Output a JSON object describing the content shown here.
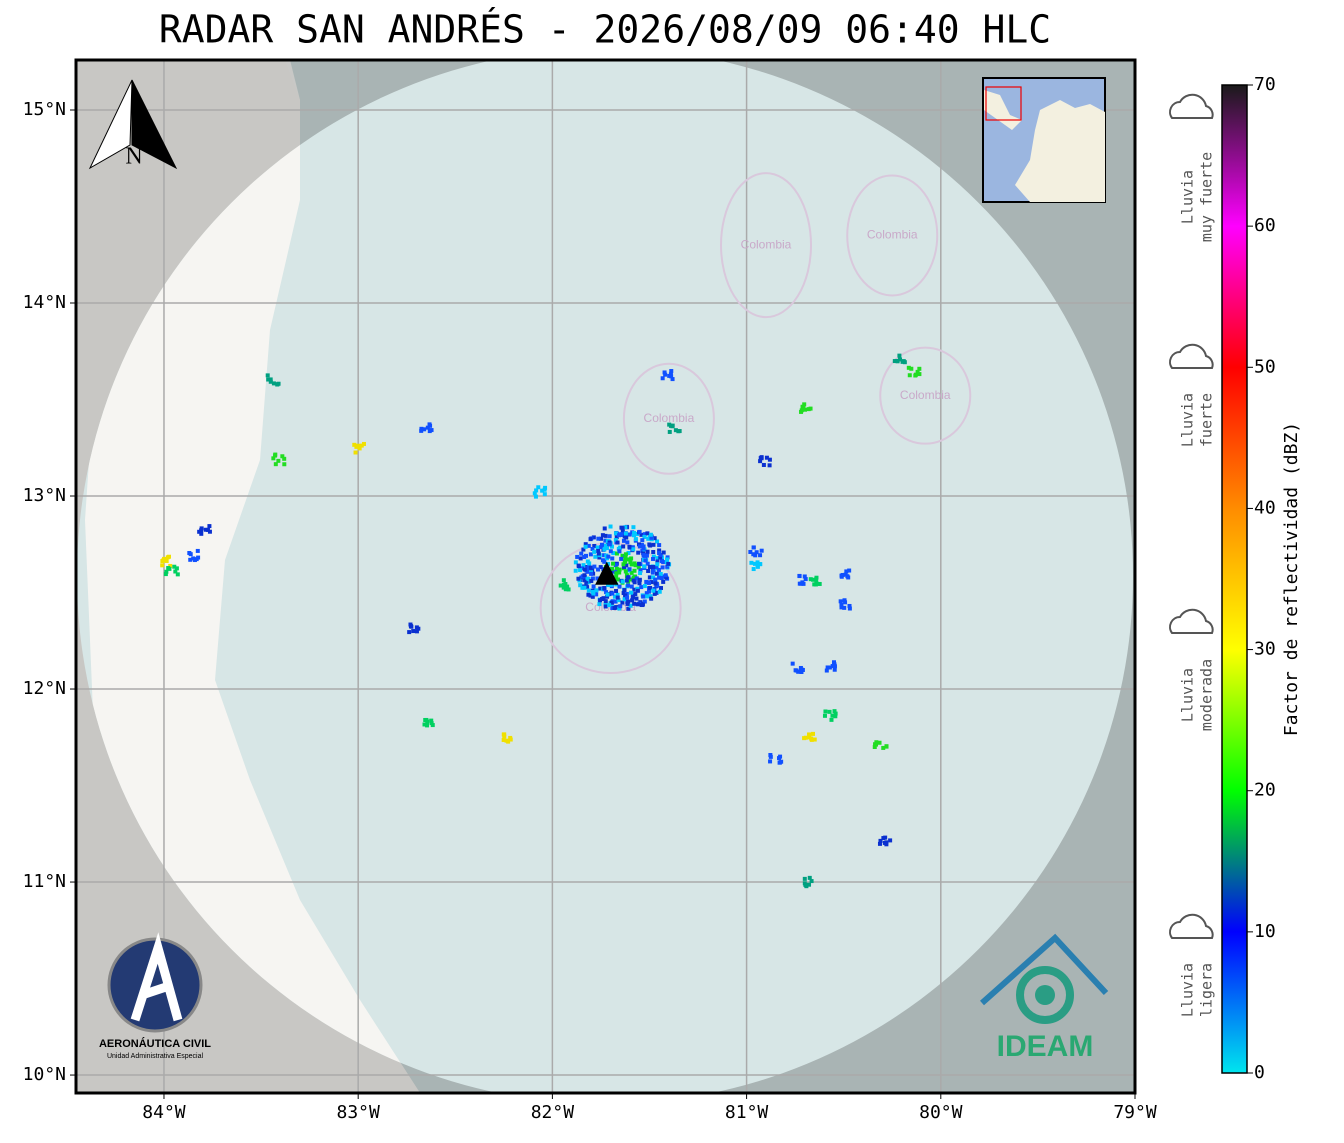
{
  "title": "RADAR SAN ANDRÉS - 2026/08/09 06:40 HLC",
  "map": {
    "xlim": [
      -84.453,
      -79
    ],
    "ylim": [
      9.907,
      15.259
    ],
    "xticks": [
      {
        "value": -84,
        "label": "84°W"
      },
      {
        "value": -83,
        "label": "83°W"
      },
      {
        "value": -82,
        "label": "82°W"
      },
      {
        "value": -81,
        "label": "81°W"
      },
      {
        "value": -80,
        "label": "80°W"
      },
      {
        "value": -79,
        "label": "79°W"
      }
    ],
    "yticks": [
      {
        "value": 10,
        "label": "10°N"
      },
      {
        "value": 11,
        "label": "11°N"
      },
      {
        "value": 12,
        "label": "12°N"
      },
      {
        "value": 13,
        "label": "13°N"
      },
      {
        "value": 14,
        "label": "14°N"
      },
      {
        "value": 15,
        "label": "15°N"
      }
    ],
    "grid": true,
    "north_label": "N",
    "region_labels": [
      "Colombia",
      "Colombia",
      "Colombia",
      "Colombia",
      "Colombia"
    ]
  },
  "colorbar": {
    "label": "Factor de reflectividad (dBZ)",
    "lim": [
      0,
      70
    ],
    "ticks": [
      0,
      10,
      20,
      30,
      40,
      50,
      60,
      70
    ],
    "colors": [
      "#00e5ee",
      "#0000ff",
      "#00ff00",
      "#ffff00",
      "#ff8c00",
      "#ff0000",
      "#ff00ff",
      "#1a1a1a"
    ],
    "categories": [
      {
        "lines": [
          "Lluvia",
          "muy fuerte"
        ]
      },
      {
        "lines": [
          "Lluvia",
          "fuerte"
        ]
      },
      {
        "lines": [
          "Lluvia",
          "moderada"
        ]
      },
      {
        "lines": [
          "Lluvia",
          "ligera"
        ]
      }
    ]
  },
  "logos": {
    "aerocivil": "AERONÁUTICA CIVIL",
    "aerocivil_sub": "Unidad Administrativa Especial",
    "ideam": "IDEAM"
  }
}
